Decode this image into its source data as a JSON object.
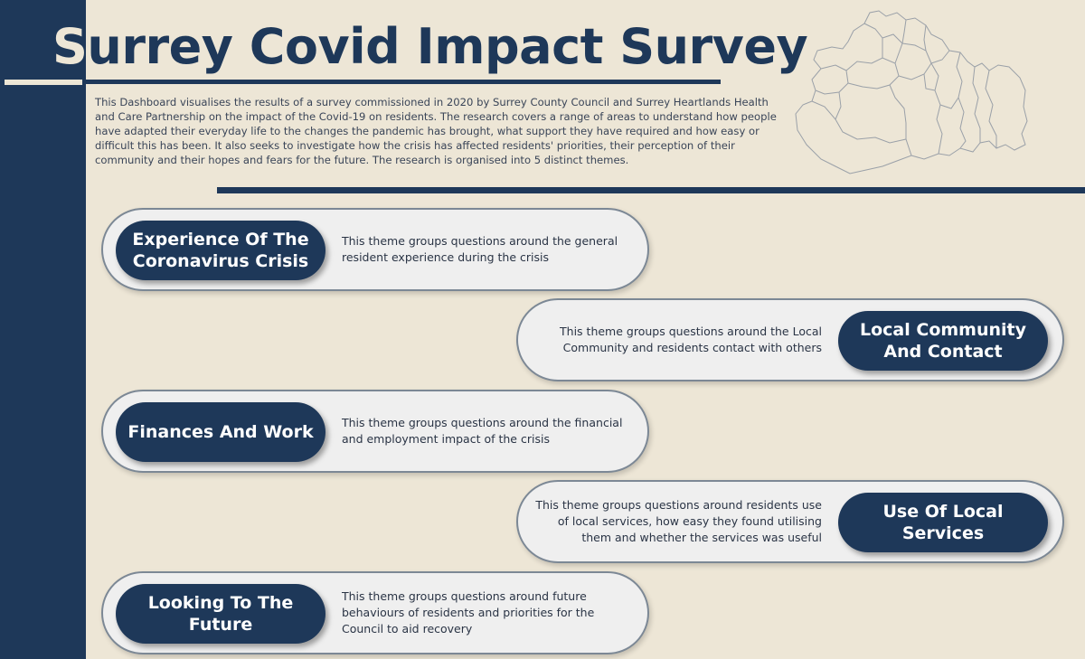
{
  "header": {
    "title": "Surrey Covid Impact Survey",
    "intro": "This Dashboard visualises the results of a survey commissioned in 2020 by Surrey County Council and Surrey Heartlands Health and Care Partnership on the impact of the Covid-19 on residents. The research covers a range of areas to understand how people have adapted their everyday life to the changes the pandemic has brought, what support they have required and how easy or difficult this has been. It also seeks to investigate how the crisis has affected residents' priorities, their perception of their community and their hopes and fears for the future. The research is organised into 5 distinct themes."
  },
  "themes": [
    {
      "label": "Experience Of The Coronavirus Crisis",
      "description": "This theme groups questions around the general resident experience during the crisis"
    },
    {
      "label": "Local Community And Contact",
      "description": "This theme groups questions around the Local Community and residents contact with others"
    },
    {
      "label": "Finances And Work",
      "description": "This theme groups questions around the financial and employment impact of the crisis"
    },
    {
      "label": "Use Of Local Services",
      "description": "This theme groups questions around residents use of local services, how easy they found utilising them and whether the services was useful"
    },
    {
      "label": "Looking To The Future",
      "description": "This theme groups questions around future behaviours of residents and priorities for the Council to aid recovery"
    }
  ],
  "colors": {
    "background": "#EDE6D6",
    "navy": "#1E3859",
    "card": "#EFEFEF"
  },
  "icons": {
    "map": "surrey-districts-map-icon"
  }
}
